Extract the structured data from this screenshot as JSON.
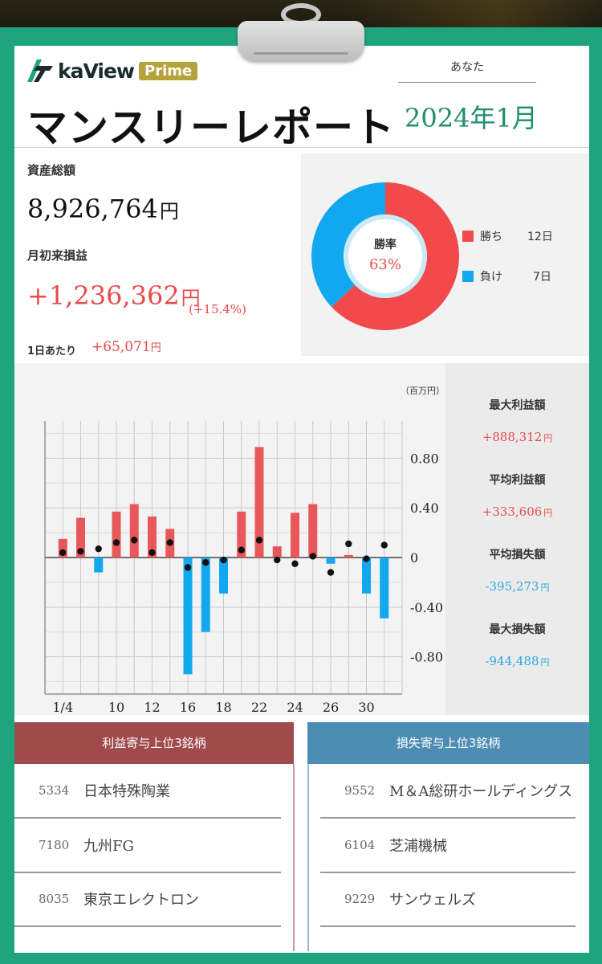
{
  "brand": {
    "name": "kaView",
    "tier": "Prime"
  },
  "report": {
    "title": "マンスリーレポート",
    "user": "あなた",
    "month": "2024年1月"
  },
  "summary": {
    "assets_label": "資産総額",
    "assets_value": "8,926,764",
    "pl_label": "月初来損益",
    "pl_value": "+1,236,362",
    "pl_pct": "(+15.4%)",
    "currency": "円",
    "daily_label": "1日あたり",
    "daily_value": "+65,071"
  },
  "winrate": {
    "center_label": "勝率",
    "center_value": "63%",
    "legend": [
      {
        "label": "勝ち",
        "count": "12日",
        "color": "#f24a4a"
      },
      {
        "label": "負け",
        "count": "7日",
        "color": "#12a8ef"
      }
    ],
    "fraction": 0.63
  },
  "chart_data": {
    "type": "bar",
    "unit_label": "（百万円）",
    "x_tick_labels": [
      "1/4",
      "10",
      "12",
      "16",
      "18",
      "22",
      "24",
      "26",
      "30"
    ],
    "ylim": [
      -1.1,
      1.1
    ],
    "y_ticks": [
      "0.80",
      "0.40",
      "0",
      "-0.40",
      "-0.80"
    ],
    "y_tick_values": [
      0.8,
      0.4,
      0,
      -0.4,
      -0.8
    ],
    "grid": true,
    "colors": {
      "positive": "#e8585a",
      "negative": "#12a8ef",
      "dot": "#111111"
    },
    "series": [
      {
        "kind": "bar",
        "days": [
          "1/4",
          "1/5",
          "1/9",
          "1/10",
          "1/11",
          "1/12",
          "1/15",
          "1/16",
          "1/17",
          "1/18",
          "1/19",
          "1/22",
          "1/23",
          "1/24",
          "1/25",
          "1/26",
          "1/29",
          "1/30",
          "1/31"
        ],
        "values": [
          0.15,
          0.32,
          -0.12,
          0.37,
          0.43,
          0.33,
          0.23,
          -0.94,
          -0.6,
          -0.29,
          0.37,
          0.89,
          0.09,
          0.36,
          0.43,
          -0.05,
          0.02,
          -0.29,
          -0.49
        ]
      },
      {
        "kind": "dot",
        "values": [
          0.04,
          0.05,
          0.07,
          0.12,
          0.14,
          0.04,
          0.12,
          -0.08,
          -0.04,
          -0.02,
          0.06,
          0.14,
          -0.02,
          -0.05,
          0.01,
          -0.12,
          0.11,
          -0.01,
          0.1
        ]
      }
    ]
  },
  "stats": [
    {
      "label": "最大利益額",
      "value": "+888,312",
      "sign": "pos"
    },
    {
      "label": "平均利益額",
      "value": "+333,606",
      "sign": "pos"
    },
    {
      "label": "平均損失額",
      "value": "-395,273",
      "sign": "neg"
    },
    {
      "label": "最大損失額",
      "value": "-944,488",
      "sign": "neg"
    }
  ],
  "top_gainers": {
    "title": "利益寄与上位3銘柄",
    "color": "#a04a4c",
    "items": [
      {
        "code": "5334",
        "name": "日本特殊陶業"
      },
      {
        "code": "7180",
        "name": "九州FG"
      },
      {
        "code": "8035",
        "name": "東京エレクトロン"
      }
    ]
  },
  "top_losers": {
    "title": "損失寄与上位3銘柄",
    "color": "#4d8db3",
    "items": [
      {
        "code": "9552",
        "name": "M＆A総研ホールディングス"
      },
      {
        "code": "6104",
        "name": "芝浦機械"
      },
      {
        "code": "9229",
        "name": "サンウェルズ"
      }
    ]
  }
}
